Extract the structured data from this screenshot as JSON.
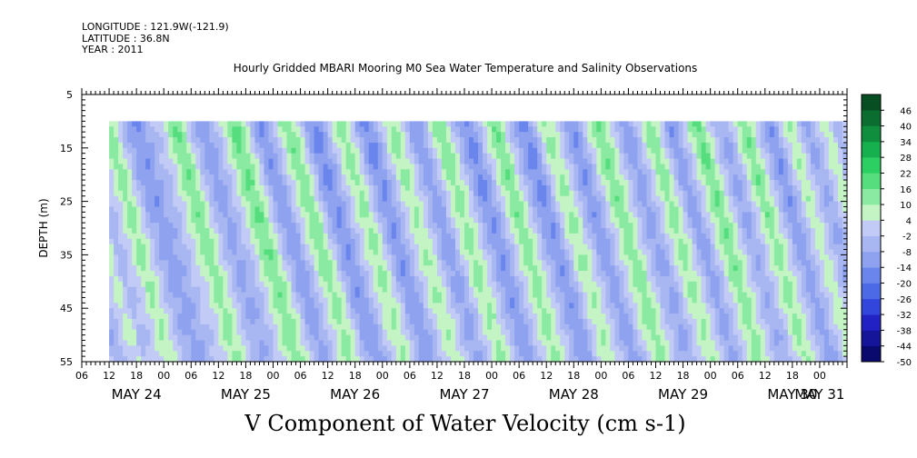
{
  "header": {
    "longitude": "LONGITUDE : 121.9W(-121.9)",
    "latitude": "LATITUDE : 36.8N",
    "year": "YEAR : 2011",
    "plot_title": "Hourly Gridded MBARI Mooring M0 Sea Water Temperature and Salinity Observations"
  },
  "chart_data": {
    "type": "heatmap",
    "title": "V Component of Water Velocity (cm s-1)",
    "ylabel": "DEPTH (m)",
    "xlabel": "",
    "ylim": [
      55,
      5
    ],
    "x_range_hours": [
      0,
      168
    ],
    "data_start_hour": 6,
    "data_depth_range": [
      10,
      55
    ],
    "y_ticks": [
      5,
      15,
      25,
      35,
      45,
      55
    ],
    "hour_tick_labels": [
      "06",
      "12",
      "18",
      "00",
      "06",
      "12",
      "18",
      "00",
      "06",
      "12",
      "18",
      "00",
      "06",
      "12",
      "18",
      "00",
      "06",
      "12",
      "18",
      "00",
      "06",
      "12",
      "18",
      "00",
      "06",
      "12",
      "18",
      "00"
    ],
    "hour_tick_hours": [
      0,
      6,
      12,
      18,
      24,
      30,
      36,
      42,
      48,
      54,
      60,
      66,
      72,
      78,
      84,
      90,
      96,
      102,
      108,
      114,
      120,
      126,
      132,
      138,
      144,
      150,
      156,
      162
    ],
    "day_labels": [
      "MAY 24",
      "MAY 25",
      "MAY 26",
      "MAY 27",
      "MAY 28",
      "MAY 29",
      "MAY 30",
      "MAY 31"
    ],
    "day_label_hours": [
      12,
      36,
      60,
      84,
      108,
      132,
      156,
      162
    ],
    "colorbar": {
      "levels": [
        -50,
        -44,
        -38,
        -32,
        -26,
        -20,
        -14,
        -8,
        -2,
        4,
        10,
        16,
        22,
        28,
        34,
        40,
        46
      ],
      "labels": [
        "-50",
        "-44",
        "-38",
        "-32",
        "-26",
        "-20",
        "-14",
        "-8",
        "-2",
        "4",
        "10",
        "16",
        "22",
        "28",
        "34",
        "40",
        "46"
      ],
      "colors": [
        "#0a0a6e",
        "#15159a",
        "#2222c4",
        "#3346dc",
        "#4d6ae6",
        "#6a86ec",
        "#8ea2ef",
        "#a8b6f2",
        "#c2cbf5",
        "#c4f4c4",
        "#8aeaa2",
        "#56de7e",
        "#2cd062",
        "#16b04e",
        "#0f8e3e",
        "#0b6e30",
        "#074f22"
      ]
    },
    "v_profile_hourly_surface": [
      -6,
      -4,
      -2,
      2,
      8,
      14,
      12,
      6,
      0,
      -6,
      -10,
      -12,
      -14,
      -10,
      -8,
      -4,
      -2,
      2,
      6,
      12,
      16,
      14,
      8,
      2,
      -4,
      -8,
      -12,
      -10,
      -6,
      -2,
      2,
      8,
      14,
      18,
      16,
      10,
      4,
      -4,
      -10,
      -14,
      -12,
      -6,
      0,
      6,
      12,
      16,
      12,
      6,
      -2,
      -10,
      -14,
      -16,
      -12,
      -6,
      0,
      6,
      10,
      14,
      8,
      2,
      -6,
      -12,
      -16,
      -14,
      -8,
      -2,
      4,
      10,
      12,
      8,
      2,
      -4,
      -10,
      -12,
      -10,
      -4,
      4,
      10,
      14,
      12,
      6,
      0,
      -6,
      -12,
      -16,
      -14,
      -8,
      -2,
      4,
      10,
      16,
      14,
      8,
      2,
      -4,
      -10,
      -14,
      -16,
      -12,
      -4,
      4,
      10,
      12,
      8,
      2,
      -4,
      -10,
      -14,
      -12,
      -6,
      0,
      6,
      12,
      16,
      14,
      8,
      2,
      -4,
      -8,
      -12,
      -10,
      -4,
      2,
      8,
      14,
      12,
      6,
      0,
      -8,
      -14,
      -10,
      -4,
      2,
      8,
      14,
      18,
      12,
      6,
      0,
      -6,
      -10,
      -8,
      -2,
      4,
      10,
      16,
      12,
      6,
      0,
      -6,
      -12,
      -14,
      -8,
      -2,
      4,
      10,
      6,
      0,
      -6,
      -10,
      -8,
      -2,
      4,
      8,
      6
    ],
    "v_depth_tilt_hours": 14
  }
}
